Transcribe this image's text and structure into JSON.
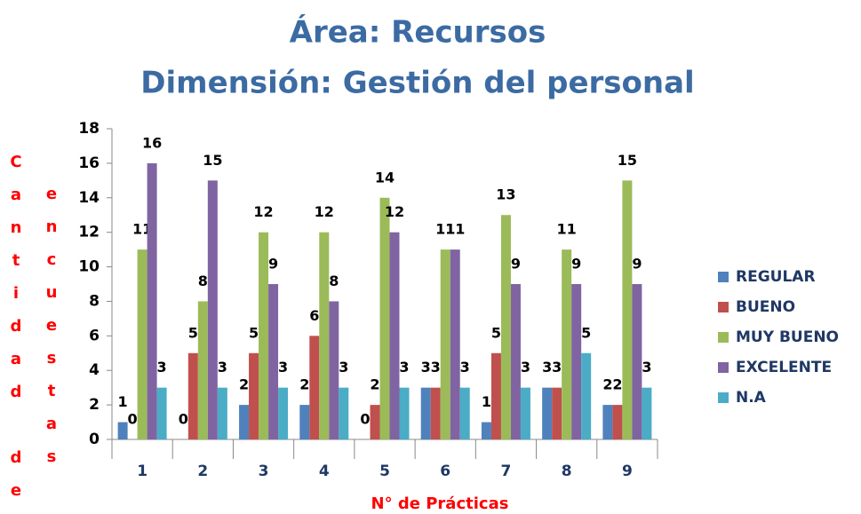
{
  "chart_data": {
    "type": "bar",
    "title": [
      "Área: Recursos",
      "Dimensión: Gestión del personal"
    ],
    "y_label": [
      "Cantidad de",
      "encuestas"
    ],
    "x_label": "N° de Prácticas",
    "categories": [
      "1",
      "2",
      "3",
      "4",
      "5",
      "6",
      "7",
      "8",
      "9"
    ],
    "series": [
      {
        "name": "REGULAR",
        "color": "#4f81bd",
        "values": [
          1,
          0,
          2,
          2,
          0,
          3,
          1,
          3,
          2
        ]
      },
      {
        "name": "BUENO",
        "color": "#c0504d",
        "values": [
          0,
          5,
          5,
          6,
          2,
          3,
          5,
          3,
          2
        ]
      },
      {
        "name": "MUY BUENO",
        "color": "#9bbb59",
        "values": [
          11,
          8,
          12,
          12,
          14,
          11,
          13,
          11,
          15
        ]
      },
      {
        "name": "EXCELENTE",
        "color": "#8064a2",
        "values": [
          16,
          15,
          9,
          8,
          12,
          11,
          9,
          9,
          9
        ]
      },
      {
        "name": "N.A",
        "color": "#4bacc6",
        "values": [
          3,
          3,
          3,
          3,
          3,
          3,
          3,
          5,
          3
        ]
      }
    ],
    "ylim": [
      0,
      18
    ],
    "yticks": [
      0,
      2,
      4,
      6,
      8,
      10,
      12,
      14,
      16,
      18
    ],
    "grid": false,
    "legend": "right"
  }
}
